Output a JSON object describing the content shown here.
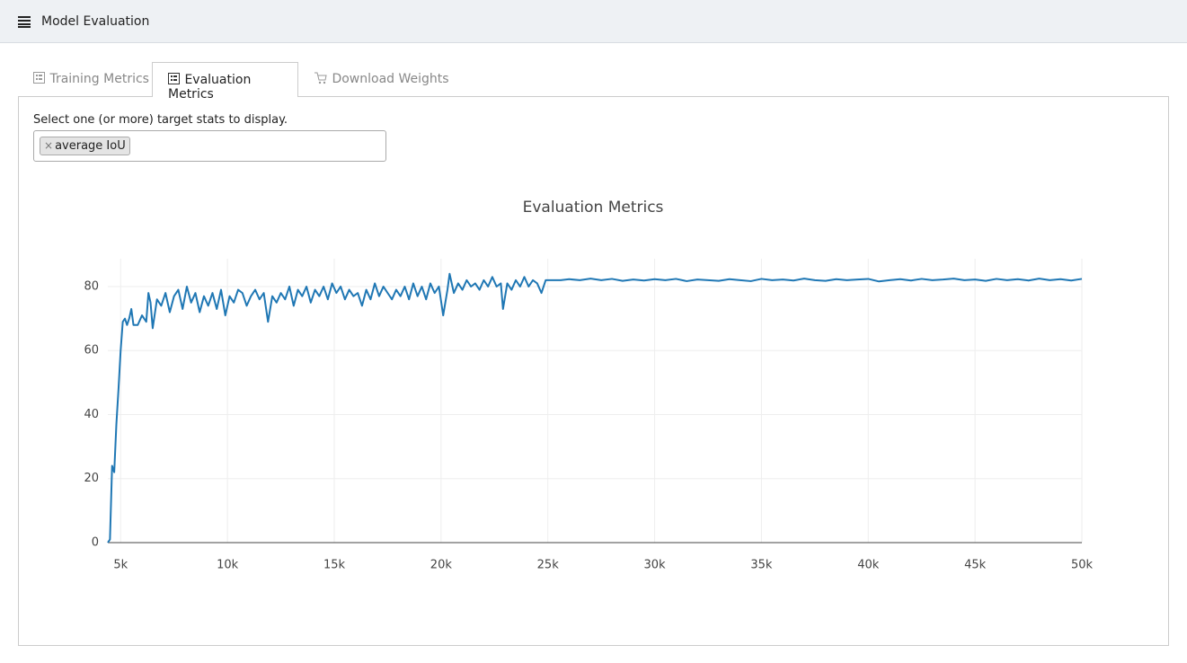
{
  "header": {
    "title": "Model Evaluation"
  },
  "tabs": [
    "Training Metrics",
    "Evaluation Metrics",
    "Download Weights"
  ],
  "selector": {
    "label": "Select one (or more) target stats to display.",
    "tag_remove": "×",
    "tag": "average IoU"
  },
  "chart_data": {
    "type": "line",
    "title": "Evaluation Metrics",
    "color": "#1f77b4",
    "grid": true,
    "x": [
      4400,
      4500,
      4600,
      4700,
      4800,
      4900,
      5000,
      5100,
      5200,
      5300,
      5400,
      5500,
      5600,
      5800,
      6000,
      6200,
      6300,
      6400,
      6500,
      6700,
      6900,
      7100,
      7300,
      7500,
      7700,
      7900,
      8100,
      8300,
      8500,
      8700,
      8900,
      9100,
      9300,
      9500,
      9700,
      9900,
      10100,
      10300,
      10500,
      10700,
      10900,
      11100,
      11300,
      11500,
      11700,
      11900,
      12100,
      12300,
      12500,
      12700,
      12900,
      13100,
      13300,
      13500,
      13700,
      13900,
      14100,
      14300,
      14500,
      14700,
      14900,
      15100,
      15300,
      15500,
      15700,
      15900,
      16100,
      16300,
      16500,
      16700,
      16900,
      17100,
      17300,
      17500,
      17700,
      17900,
      18100,
      18300,
      18500,
      18700,
      18900,
      19100,
      19300,
      19500,
      19700,
      19900,
      20100,
      20300,
      20400,
      20600,
      20800,
      21000,
      21200,
      21400,
      21600,
      21800,
      22000,
      22200,
      22400,
      22600,
      22800,
      22900,
      23100,
      23300,
      23500,
      23700,
      23900,
      24100,
      24300,
      24500,
      24700,
      24900,
      25100,
      25600,
      26000,
      26500,
      27000,
      27500,
      28000,
      28500,
      29000,
      29500,
      30000,
      30500,
      31000,
      31500,
      32000,
      32500,
      33000,
      33500,
      34000,
      34500,
      35000,
      35500,
      36000,
      36500,
      37000,
      37500,
      38000,
      38500,
      39000,
      39500,
      40000,
      40500,
      41000,
      41500,
      42000,
      42500,
      43000,
      43500,
      44000,
      44500,
      45000,
      45500,
      46000,
      46500,
      47000,
      47500,
      48000,
      48500,
      49000,
      49500,
      50000
    ],
    "values": [
      0,
      1,
      24,
      22,
      37,
      48,
      60,
      69,
      70,
      68,
      70,
      73,
      68,
      68,
      71,
      69,
      78,
      75,
      67,
      76,
      74,
      78,
      72,
      77,
      79,
      73,
      80,
      75,
      78,
      72,
      77,
      74,
      78,
      73,
      79,
      71,
      77,
      75,
      79,
      78,
      74,
      77,
      79,
      76,
      78,
      69,
      77,
      75,
      78,
      76,
      80,
      74,
      79,
      77,
      80,
      75,
      79,
      77,
      80,
      76,
      81,
      78,
      80,
      76,
      79,
      77,
      78,
      74,
      79,
      76,
      81,
      77,
      80,
      78,
      76,
      79,
      77,
      80,
      76,
      81,
      77,
      80,
      76,
      81,
      78,
      80,
      71,
      79,
      84,
      78,
      81,
      79,
      82,
      80,
      81,
      79,
      82,
      80,
      83,
      80,
      81,
      73,
      81,
      79,
      82,
      80,
      83,
      80,
      82,
      81,
      78,
      82,
      82,
      82,
      82.3,
      82,
      82.5,
      82,
      82.4,
      81.8,
      82.2,
      81.9,
      82.3,
      82,
      82.4,
      81.7,
      82.2,
      82,
      81.8,
      82.3,
      82,
      81.7,
      82.4,
      82,
      82.2,
      81.9,
      82.5,
      82,
      81.8,
      82.3,
      82,
      82.2,
      82.4,
      81.6,
      82,
      82.3,
      81.9,
      82.4,
      82,
      82.2,
      82.5,
      82,
      82.2,
      81.8,
      82.4,
      82,
      82.3,
      81.9,
      82.5,
      82,
      82.3,
      81.9,
      82.4
    ],
    "xlim": [
      4400,
      50000
    ],
    "ylim": [
      0,
      88.7
    ],
    "xticks": [
      {
        "value": 5000,
        "label": "5k"
      },
      {
        "value": 10000,
        "label": "10k"
      },
      {
        "value": 15000,
        "label": "15k"
      },
      {
        "value": 20000,
        "label": "20k"
      },
      {
        "value": 25000,
        "label": "25k"
      },
      {
        "value": 30000,
        "label": "30k"
      },
      {
        "value": 35000,
        "label": "35k"
      },
      {
        "value": 40000,
        "label": "40k"
      },
      {
        "value": 45000,
        "label": "45k"
      },
      {
        "value": 50000,
        "label": "50k"
      }
    ],
    "yticks": [
      0,
      20,
      40,
      60,
      80
    ]
  }
}
